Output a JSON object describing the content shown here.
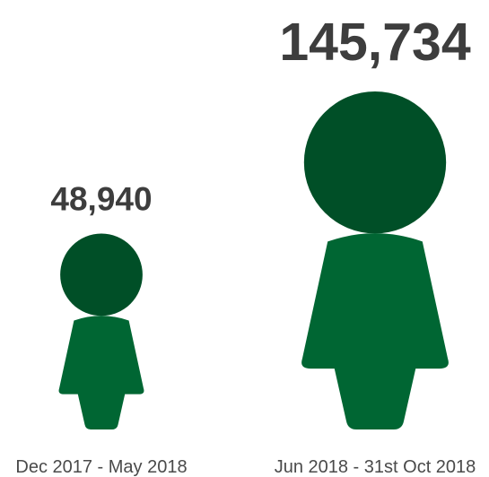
{
  "chart_data": {
    "type": "pictograph",
    "categories": [
      "Dec 2017 - May 2018",
      "Jun 2018 - 31st Oct 2018"
    ],
    "values": [
      48940,
      145734
    ],
    "value_labels": [
      "48,940",
      "145,734"
    ],
    "icon": "person-icon",
    "colors": {
      "head": "#004f27",
      "body": "#006633"
    },
    "title": "",
    "xlabel": "",
    "ylabel": ""
  }
}
